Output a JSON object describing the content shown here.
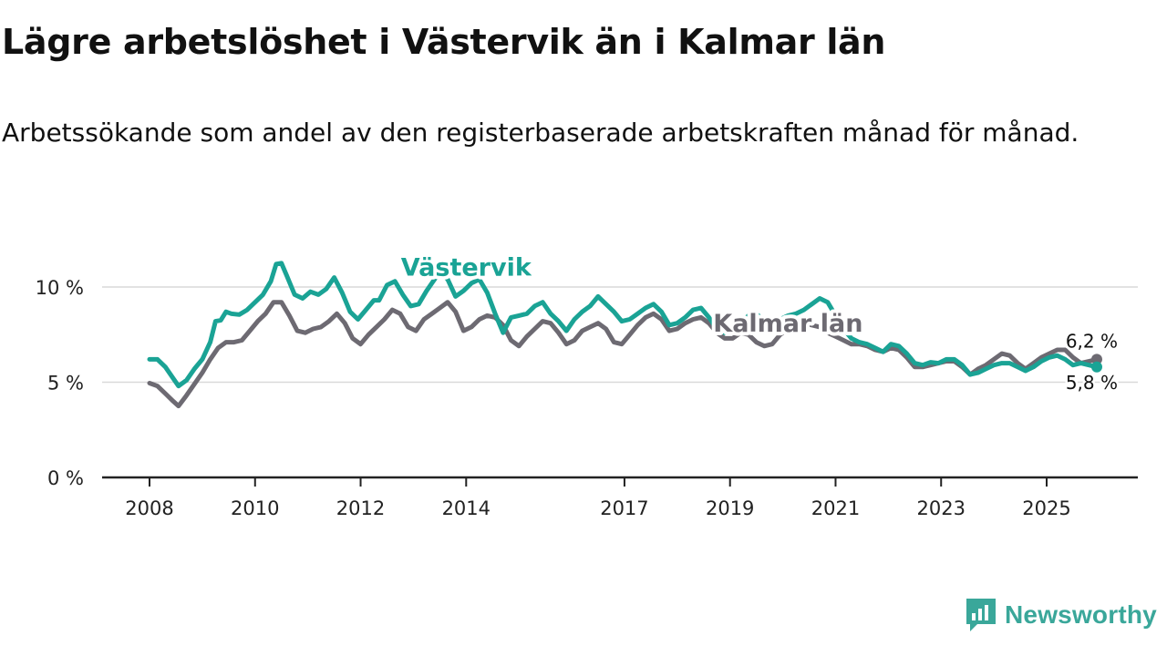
{
  "title": "Lägre arbetslöshet i Västervik än i Kalmar län",
  "subtitle": "Arbetssökande som andel av den registerbaserade arbetskraften månad för månad.",
  "brand": {
    "name": "Newsworthy"
  },
  "colors": {
    "vastervik": "#1aa395",
    "kalmar": "#6d6a72",
    "grid": "#d9d9d9",
    "axis": "#222222",
    "brand": "#3aa79a"
  },
  "chart_data": {
    "type": "line",
    "title": "Lägre arbetslöshet i Västervik än i Kalmar län",
    "xlabel": "",
    "ylabel": "",
    "xlim": [
      2008,
      2026.2
    ],
    "ylim": [
      0,
      10
    ],
    "x_ticks": [
      2008,
      2010,
      2012,
      2014,
      2017,
      2019,
      2021,
      2023,
      2025
    ],
    "x_tick_labels": [
      "2008",
      "2010",
      "2012",
      "2014",
      "2017",
      "2019",
      "2021",
      "2023",
      "2025"
    ],
    "y_ticks": [
      0,
      5,
      10
    ],
    "y_tick_labels": [
      "0 %",
      "5 %",
      "10 %"
    ],
    "grid": true,
    "series": [
      {
        "name": "Västervik",
        "label_at": [
          2014.0,
          10.6
        ],
        "end_label": "5,8 %",
        "points": [
          [
            2008.0,
            6.2
          ],
          [
            2008.15,
            6.2
          ],
          [
            2008.3,
            5.8
          ],
          [
            2008.45,
            5.2
          ],
          [
            2008.55,
            4.8
          ],
          [
            2008.7,
            5.1
          ],
          [
            2008.85,
            5.7
          ],
          [
            2009.0,
            6.2
          ],
          [
            2009.15,
            7.1
          ],
          [
            2009.25,
            8.2
          ],
          [
            2009.35,
            8.25
          ],
          [
            2009.45,
            8.7
          ],
          [
            2009.55,
            8.6
          ],
          [
            2009.7,
            8.55
          ],
          [
            2009.85,
            8.8
          ],
          [
            2010.0,
            9.2
          ],
          [
            2010.15,
            9.6
          ],
          [
            2010.3,
            10.3
          ],
          [
            2010.4,
            11.2
          ],
          [
            2010.5,
            11.25
          ],
          [
            2010.6,
            10.6
          ],
          [
            2010.75,
            9.6
          ],
          [
            2010.9,
            9.4
          ],
          [
            2011.05,
            9.75
          ],
          [
            2011.2,
            9.6
          ],
          [
            2011.35,
            9.9
          ],
          [
            2011.5,
            10.5
          ],
          [
            2011.65,
            9.7
          ],
          [
            2011.8,
            8.7
          ],
          [
            2011.95,
            8.3
          ],
          [
            2012.1,
            8.8
          ],
          [
            2012.25,
            9.3
          ],
          [
            2012.35,
            9.3
          ],
          [
            2012.5,
            10.1
          ],
          [
            2012.65,
            10.3
          ],
          [
            2012.8,
            9.6
          ],
          [
            2012.95,
            9.0
          ],
          [
            2013.1,
            9.1
          ],
          [
            2013.25,
            9.8
          ],
          [
            2013.35,
            10.2
          ],
          [
            2013.5,
            10.8
          ],
          [
            2013.65,
            10.4
          ],
          [
            2013.8,
            9.5
          ],
          [
            2013.95,
            9.8
          ],
          [
            2014.1,
            10.2
          ],
          [
            2014.25,
            10.4
          ],
          [
            2014.4,
            9.7
          ],
          [
            2014.55,
            8.6
          ],
          [
            2014.7,
            7.6
          ],
          [
            2014.85,
            8.4
          ],
          [
            2015.0,
            8.5
          ],
          [
            2015.15,
            8.6
          ],
          [
            2015.3,
            9.0
          ],
          [
            2015.45,
            9.2
          ],
          [
            2015.6,
            8.6
          ],
          [
            2015.75,
            8.2
          ],
          [
            2015.9,
            7.7
          ],
          [
            2016.05,
            8.3
          ],
          [
            2016.2,
            8.7
          ],
          [
            2016.35,
            9.0
          ],
          [
            2016.5,
            9.5
          ],
          [
            2016.65,
            9.1
          ],
          [
            2016.8,
            8.7
          ],
          [
            2016.95,
            8.2
          ],
          [
            2017.1,
            8.3
          ],
          [
            2017.25,
            8.6
          ],
          [
            2017.4,
            8.9
          ],
          [
            2017.55,
            9.1
          ],
          [
            2017.7,
            8.7
          ],
          [
            2017.85,
            8.0
          ],
          [
            2018.0,
            8.1
          ],
          [
            2018.15,
            8.4
          ],
          [
            2018.3,
            8.8
          ],
          [
            2018.45,
            8.9
          ],
          [
            2018.6,
            8.4
          ],
          [
            2018.75,
            7.8
          ],
          [
            2018.9,
            7.6
          ],
          [
            2019.05,
            7.8
          ],
          [
            2019.2,
            8.1
          ],
          [
            2019.35,
            8.5
          ],
          [
            2019.5,
            8.6
          ],
          [
            2019.65,
            8.2
          ],
          [
            2019.8,
            8.0
          ],
          [
            2019.95,
            8.3
          ],
          [
            2020.1,
            8.5
          ],
          [
            2020.25,
            8.6
          ],
          [
            2020.4,
            8.8
          ],
          [
            2020.55,
            9.1
          ],
          [
            2020.7,
            9.4
          ],
          [
            2020.85,
            9.2
          ],
          [
            2021.0,
            8.5
          ],
          [
            2021.15,
            7.8
          ],
          [
            2021.3,
            7.3
          ],
          [
            2021.45,
            7.1
          ],
          [
            2021.6,
            7.0
          ],
          [
            2021.75,
            6.8
          ],
          [
            2021.9,
            6.6
          ],
          [
            2022.05,
            7.0
          ],
          [
            2022.2,
            6.9
          ],
          [
            2022.35,
            6.5
          ],
          [
            2022.5,
            6.0
          ],
          [
            2022.65,
            5.9
          ],
          [
            2022.8,
            6.05
          ],
          [
            2022.95,
            6.0
          ],
          [
            2023.1,
            6.2
          ],
          [
            2023.25,
            6.2
          ],
          [
            2023.4,
            5.9
          ],
          [
            2023.55,
            5.4
          ],
          [
            2023.7,
            5.5
          ],
          [
            2023.85,
            5.7
          ],
          [
            2024.0,
            5.9
          ],
          [
            2024.15,
            6.0
          ],
          [
            2024.3,
            6.0
          ],
          [
            2024.45,
            5.8
          ],
          [
            2024.6,
            5.6
          ],
          [
            2024.75,
            5.8
          ],
          [
            2024.9,
            6.1
          ],
          [
            2025.05,
            6.3
          ],
          [
            2025.2,
            6.4
          ],
          [
            2025.35,
            6.2
          ],
          [
            2025.5,
            5.9
          ],
          [
            2025.65,
            6.0
          ],
          [
            2025.8,
            5.9
          ],
          [
            2025.95,
            5.8
          ]
        ]
      },
      {
        "name": "Kalmar län",
        "label_at": [
          2020.1,
          7.65
        ],
        "end_label": "6,2 %",
        "points": [
          [
            2008.0,
            4.95
          ],
          [
            2008.15,
            4.8
          ],
          [
            2008.3,
            4.4
          ],
          [
            2008.45,
            4.0
          ],
          [
            2008.55,
            3.75
          ],
          [
            2008.7,
            4.3
          ],
          [
            2008.85,
            4.9
          ],
          [
            2009.0,
            5.5
          ],
          [
            2009.15,
            6.2
          ],
          [
            2009.3,
            6.8
          ],
          [
            2009.45,
            7.1
          ],
          [
            2009.6,
            7.1
          ],
          [
            2009.75,
            7.2
          ],
          [
            2009.9,
            7.7
          ],
          [
            2010.05,
            8.2
          ],
          [
            2010.2,
            8.6
          ],
          [
            2010.35,
            9.2
          ],
          [
            2010.5,
            9.2
          ],
          [
            2010.65,
            8.5
          ],
          [
            2010.8,
            7.7
          ],
          [
            2010.95,
            7.6
          ],
          [
            2011.1,
            7.8
          ],
          [
            2011.25,
            7.9
          ],
          [
            2011.4,
            8.2
          ],
          [
            2011.55,
            8.6
          ],
          [
            2011.7,
            8.1
          ],
          [
            2011.85,
            7.3
          ],
          [
            2012.0,
            7.0
          ],
          [
            2012.15,
            7.5
          ],
          [
            2012.3,
            7.9
          ],
          [
            2012.45,
            8.3
          ],
          [
            2012.6,
            8.8
          ],
          [
            2012.75,
            8.6
          ],
          [
            2012.9,
            7.9
          ],
          [
            2013.05,
            7.7
          ],
          [
            2013.2,
            8.3
          ],
          [
            2013.35,
            8.6
          ],
          [
            2013.5,
            8.9
          ],
          [
            2013.65,
            9.2
          ],
          [
            2013.8,
            8.7
          ],
          [
            2013.95,
            7.7
          ],
          [
            2014.1,
            7.9
          ],
          [
            2014.25,
            8.3
          ],
          [
            2014.4,
            8.5
          ],
          [
            2014.55,
            8.4
          ],
          [
            2014.7,
            8.0
          ],
          [
            2014.85,
            7.2
          ],
          [
            2015.0,
            6.9
          ],
          [
            2015.15,
            7.4
          ],
          [
            2015.3,
            7.8
          ],
          [
            2015.45,
            8.2
          ],
          [
            2015.6,
            8.1
          ],
          [
            2015.75,
            7.6
          ],
          [
            2015.9,
            7.0
          ],
          [
            2016.05,
            7.2
          ],
          [
            2016.2,
            7.7
          ],
          [
            2016.35,
            7.9
          ],
          [
            2016.5,
            8.1
          ],
          [
            2016.65,
            7.8
          ],
          [
            2016.8,
            7.1
          ],
          [
            2016.95,
            7.0
          ],
          [
            2017.1,
            7.5
          ],
          [
            2017.25,
            8.0
          ],
          [
            2017.4,
            8.4
          ],
          [
            2017.55,
            8.6
          ],
          [
            2017.7,
            8.3
          ],
          [
            2017.85,
            7.7
          ],
          [
            2018.0,
            7.8
          ],
          [
            2018.15,
            8.1
          ],
          [
            2018.3,
            8.3
          ],
          [
            2018.45,
            8.4
          ],
          [
            2018.6,
            8.1
          ],
          [
            2018.75,
            7.6
          ],
          [
            2018.9,
            7.3
          ],
          [
            2019.05,
            7.3
          ],
          [
            2019.2,
            7.6
          ],
          [
            2019.35,
            7.5
          ],
          [
            2019.5,
            7.1
          ],
          [
            2019.65,
            6.9
          ],
          [
            2019.8,
            7.0
          ],
          [
            2019.95,
            7.5
          ],
          [
            2020.1,
            7.8
          ],
          [
            2020.25,
            7.9
          ],
          [
            2020.4,
            8.1
          ],
          [
            2020.55,
            8.0
          ],
          [
            2020.7,
            7.9
          ],
          [
            2020.85,
            7.6
          ],
          [
            2021.0,
            7.4
          ],
          [
            2021.15,
            7.2
          ],
          [
            2021.3,
            7.0
          ],
          [
            2021.45,
            7.0
          ],
          [
            2021.6,
            6.9
          ],
          [
            2021.75,
            6.7
          ],
          [
            2021.9,
            6.6
          ],
          [
            2022.05,
            6.8
          ],
          [
            2022.2,
            6.7
          ],
          [
            2022.35,
            6.3
          ],
          [
            2022.5,
            5.8
          ],
          [
            2022.65,
            5.8
          ],
          [
            2022.8,
            5.9
          ],
          [
            2022.95,
            6.0
          ],
          [
            2023.1,
            6.1
          ],
          [
            2023.25,
            6.1
          ],
          [
            2023.4,
            5.8
          ],
          [
            2023.55,
            5.4
          ],
          [
            2023.7,
            5.7
          ],
          [
            2023.85,
            5.9
          ],
          [
            2024.0,
            6.2
          ],
          [
            2024.15,
            6.5
          ],
          [
            2024.3,
            6.4
          ],
          [
            2024.45,
            6.0
          ],
          [
            2024.6,
            5.7
          ],
          [
            2024.75,
            6.0
          ],
          [
            2024.9,
            6.3
          ],
          [
            2025.05,
            6.5
          ],
          [
            2025.2,
            6.7
          ],
          [
            2025.35,
            6.7
          ],
          [
            2025.5,
            6.3
          ],
          [
            2025.65,
            6.0
          ],
          [
            2025.8,
            6.1
          ],
          [
            2025.95,
            6.2
          ]
        ]
      }
    ]
  }
}
